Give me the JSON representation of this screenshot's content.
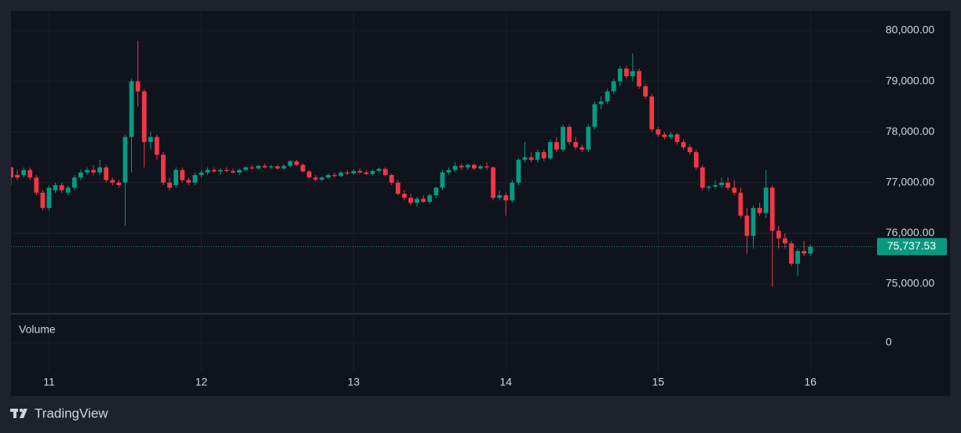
{
  "chart_data": {
    "type": "candlestick",
    "x": [
      0,
      1,
      2,
      3,
      4,
      5,
      6,
      7,
      8,
      9,
      10,
      11,
      12,
      13,
      14,
      15,
      16,
      17,
      18,
      19,
      20,
      21,
      22,
      23,
      24,
      25,
      26,
      27,
      28,
      29,
      30,
      31,
      32,
      33,
      34,
      35,
      36,
      37,
      38,
      39,
      40,
      41,
      42,
      43,
      44,
      45,
      46,
      47,
      48,
      49,
      50,
      51,
      52,
      53,
      54,
      55,
      56,
      57,
      58,
      59,
      60,
      61,
      62,
      63,
      64,
      65,
      66,
      67,
      68,
      69,
      70,
      71,
      72,
      73,
      74,
      75,
      76,
      77,
      78,
      79,
      80,
      81,
      82,
      83,
      84,
      85,
      86,
      87,
      88,
      89,
      90,
      91,
      92,
      93,
      94,
      95,
      96,
      97,
      98,
      99,
      100,
      101,
      102,
      103,
      104,
      105,
      106,
      107,
      108,
      109,
      110,
      111,
      112,
      113,
      114,
      115,
      116,
      117,
      118,
      119,
      120,
      121,
      122,
      123,
      124,
      125,
      126
    ],
    "ohlc": [
      [
        77300,
        77320,
        76950,
        77100
      ],
      [
        77150,
        77250,
        77050,
        77100
      ],
      [
        77150,
        77300,
        77100,
        77250
      ],
      [
        77250,
        77300,
        77050,
        77100
      ],
      [
        77100,
        77150,
        76750,
        76800
      ],
      [
        76800,
        76850,
        76450,
        76500
      ],
      [
        76500,
        76950,
        76450,
        76900
      ],
      [
        76850,
        77000,
        76800,
        76950
      ],
      [
        76950,
        77000,
        76800,
        76850
      ],
      [
        76800,
        76950,
        76750,
        76900
      ],
      [
        76900,
        77150,
        76850,
        77100
      ],
      [
        77100,
        77250,
        77050,
        77200
      ],
      [
        77200,
        77300,
        77150,
        77250
      ],
      [
        77250,
        77350,
        77150,
        77200
      ],
      [
        77200,
        77450,
        77150,
        77300
      ],
      [
        77300,
        77350,
        77000,
        77050
      ],
      [
        77050,
        77100,
        76950,
        77000
      ],
      [
        77000,
        77050,
        76900,
        76950
      ],
      [
        77000,
        77950,
        76150,
        77900
      ],
      [
        77900,
        79050,
        77200,
        79000
      ],
      [
        79000,
        79800,
        78500,
        78800
      ],
      [
        78800,
        78850,
        77300,
        77800
      ],
      [
        77800,
        78000,
        77650,
        77900
      ],
      [
        77900,
        77950,
        77450,
        77550
      ],
      [
        77550,
        77600,
        76950,
        77000
      ],
      [
        77000,
        77100,
        76850,
        76900
      ],
      [
        76950,
        77300,
        76900,
        77250
      ],
      [
        77250,
        77300,
        77000,
        77050
      ],
      [
        77050,
        77100,
        76950,
        77000
      ],
      [
        77000,
        77200,
        76950,
        77150
      ],
      [
        77150,
        77250,
        77100,
        77200
      ],
      [
        77200,
        77300,
        77150,
        77250
      ],
      [
        77250,
        77300,
        77200,
        77220
      ],
      [
        77220,
        77280,
        77150,
        77250
      ],
      [
        77250,
        77300,
        77200,
        77230
      ],
      [
        77230,
        77280,
        77180,
        77200
      ],
      [
        77200,
        77280,
        77150,
        77250
      ],
      [
        77250,
        77320,
        77220,
        77300
      ],
      [
        77300,
        77350,
        77250,
        77280
      ],
      [
        77280,
        77350,
        77250,
        77330
      ],
      [
        77330,
        77380,
        77280,
        77300
      ],
      [
        77300,
        77350,
        77270,
        77320
      ],
      [
        77320,
        77350,
        77260,
        77280
      ],
      [
        77280,
        77360,
        77250,
        77330
      ],
      [
        77330,
        77450,
        77300,
        77420
      ],
      [
        77420,
        77450,
        77320,
        77350
      ],
      [
        77350,
        77380,
        77200,
        77220
      ],
      [
        77220,
        77250,
        77080,
        77100
      ],
      [
        77100,
        77150,
        77030,
        77060
      ],
      [
        77060,
        77120,
        77030,
        77100
      ],
      [
        77100,
        77180,
        77080,
        77150
      ],
      [
        77150,
        77200,
        77100,
        77130
      ],
      [
        77130,
        77230,
        77110,
        77200
      ],
      [
        77200,
        77250,
        77150,
        77180
      ],
      [
        77180,
        77260,
        77160,
        77230
      ],
      [
        77230,
        77280,
        77180,
        77200
      ],
      [
        77200,
        77250,
        77150,
        77170
      ],
      [
        77170,
        77260,
        77150,
        77230
      ],
      [
        77230,
        77300,
        77200,
        77270
      ],
      [
        77270,
        77300,
        77130,
        77150
      ],
      [
        77150,
        77180,
        76950,
        77000
      ],
      [
        77000,
        77050,
        76750,
        76780
      ],
      [
        76780,
        76850,
        76650,
        76700
      ],
      [
        76700,
        76780,
        76550,
        76600
      ],
      [
        76600,
        76720,
        76520,
        76680
      ],
      [
        76680,
        76750,
        76600,
        76620
      ],
      [
        76620,
        76780,
        76580,
        76750
      ],
      [
        76750,
        76920,
        76700,
        76900
      ],
      [
        76900,
        77250,
        76850,
        77200
      ],
      [
        77200,
        77300,
        77150,
        77250
      ],
      [
        77250,
        77400,
        77200,
        77330
      ],
      [
        77330,
        77380,
        77250,
        77300
      ],
      [
        77300,
        77380,
        77250,
        77350
      ],
      [
        77350,
        77380,
        77250,
        77280
      ],
      [
        77280,
        77350,
        77250,
        77320
      ],
      [
        77320,
        77400,
        77250,
        77300
      ],
      [
        77300,
        77320,
        76650,
        76700
      ],
      [
        76700,
        76850,
        76650,
        76750
      ],
      [
        76750,
        76800,
        76350,
        76650
      ],
      [
        76650,
        77050,
        76600,
        77000
      ],
      [
        77000,
        77480,
        76950,
        77450
      ],
      [
        77450,
        77800,
        77400,
        77500
      ],
      [
        77500,
        77600,
        77400,
        77450
      ],
      [
        77450,
        77650,
        77400,
        77600
      ],
      [
        77600,
        77650,
        77420,
        77480
      ],
      [
        77480,
        77850,
        77450,
        77800
      ],
      [
        77800,
        77900,
        77600,
        77650
      ],
      [
        77650,
        78150,
        77600,
        78100
      ],
      [
        78100,
        78150,
        77750,
        77800
      ],
      [
        77800,
        77900,
        77650,
        77700
      ],
      [
        77700,
        77750,
        77600,
        77650
      ],
      [
        77650,
        78150,
        77600,
        78100
      ],
      [
        78100,
        78600,
        78050,
        78550
      ],
      [
        78550,
        78700,
        78450,
        78600
      ],
      [
        78600,
        78850,
        78550,
        78800
      ],
      [
        78800,
        79050,
        78750,
        79000
      ],
      [
        79000,
        79300,
        78900,
        79250
      ],
      [
        79250,
        79300,
        79050,
        79100
      ],
      [
        79100,
        79550,
        79000,
        79200
      ],
      [
        79200,
        79250,
        78850,
        78900
      ],
      [
        78900,
        78950,
        78650,
        78700
      ],
      [
        78700,
        78750,
        78000,
        78050
      ],
      [
        78050,
        78100,
        77900,
        77950
      ],
      [
        77950,
        78000,
        77850,
        77900
      ],
      [
        77900,
        78000,
        77850,
        77950
      ],
      [
        77950,
        77980,
        77750,
        77800
      ],
      [
        77800,
        77850,
        77650,
        77700
      ],
      [
        77700,
        77750,
        77550,
        77600
      ],
      [
        77600,
        77650,
        77250,
        77300
      ],
      [
        77300,
        77350,
        76850,
        76900
      ],
      [
        76900,
        76950,
        76850,
        76920
      ],
      [
        76920,
        77050,
        76880,
        76950
      ],
      [
        76950,
        77100,
        76900,
        77000
      ],
      [
        77000,
        77100,
        76850,
        76900
      ],
      [
        76900,
        77050,
        76750,
        76800
      ],
      [
        76800,
        76900,
        76300,
        76350
      ],
      [
        76350,
        76500,
        75600,
        75950
      ],
      [
        75950,
        76550,
        75700,
        76500
      ],
      [
        76500,
        76600,
        76350,
        76400
      ],
      [
        76400,
        77250,
        76300,
        76900
      ],
      [
        76900,
        76950,
        74950,
        76050
      ],
      [
        76050,
        76150,
        75700,
        75900
      ],
      [
        75900,
        76000,
        75700,
        75800
      ],
      [
        75800,
        75850,
        75350,
        75400
      ],
      [
        75400,
        75700,
        75150,
        75650
      ],
      [
        75650,
        75850,
        75550,
        75600
      ],
      [
        75600,
        75780,
        75550,
        75737.53
      ]
    ],
    "up_color": "#089981",
    "down_color": "#f23645",
    "xlim": [
      0,
      136
    ],
    "xticks": [
      {
        "value": 6,
        "label": "11"
      },
      {
        "value": 30,
        "label": "12"
      },
      {
        "value": 54,
        "label": "13"
      },
      {
        "value": 78,
        "label": "14"
      },
      {
        "value": 102,
        "label": "15"
      },
      {
        "value": 126,
        "label": "16"
      }
    ],
    "ylim": [
      74412,
      80387
    ],
    "yticks": [
      {
        "value": 75000,
        "label": "75,000.00"
      },
      {
        "value": 76000,
        "label": "76,000.00"
      },
      {
        "value": 77000,
        "label": "77,000.00"
      },
      {
        "value": 78000,
        "label": "78,000.00"
      },
      {
        "value": 79000,
        "label": "79,000.00"
      },
      {
        "value": 80000,
        "label": "80,000.00"
      }
    ],
    "grid": true,
    "price_line": {
      "value": 75737.53,
      "label": "75,737.53",
      "color": "#089981"
    },
    "volume": {
      "title": "Volume",
      "yticks": [
        0
      ]
    }
  },
  "footer": {
    "brand": "TradingView"
  }
}
